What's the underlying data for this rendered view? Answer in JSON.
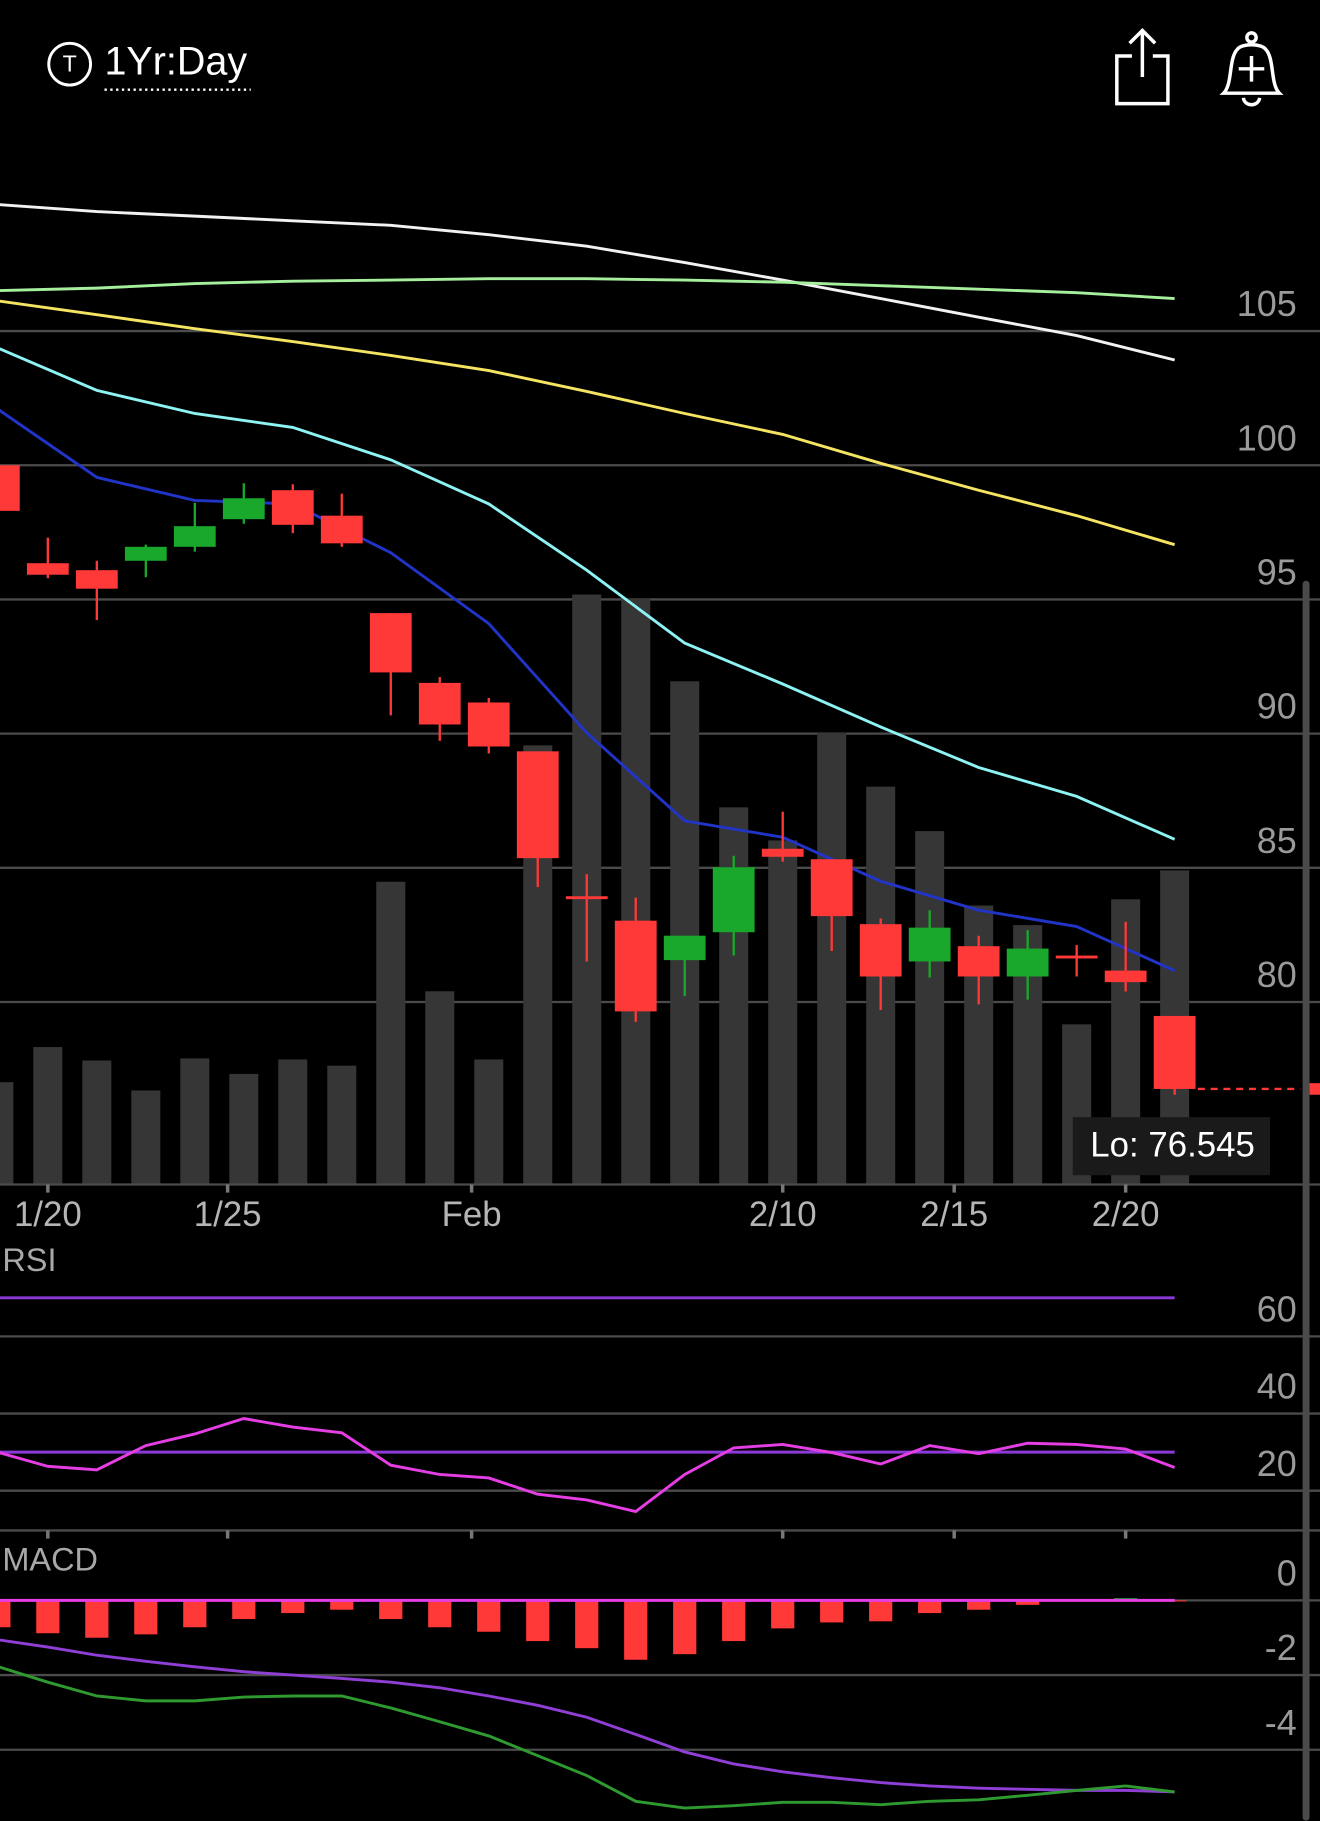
{
  "header": {
    "icon_label": "T",
    "title": "1Yr:Day"
  },
  "chart_data": [
    {
      "type": "candlestick",
      "xlim": [
        0,
        27
      ],
      "ylim": [
        73.2,
        111.7
      ],
      "yticks": [
        80,
        85,
        90,
        95,
        100,
        105
      ],
      "xticks": [
        {
          "value": 1,
          "label": "1/20"
        },
        {
          "value": 4.67,
          "label": "1/25"
        },
        {
          "value": 9.65,
          "label": "Feb"
        },
        {
          "value": 16,
          "label": "2/10"
        },
        {
          "value": 19.5,
          "label": "2/15"
        },
        {
          "value": 23,
          "label": "2/20"
        }
      ],
      "grid": true,
      "up_color": "#19a82b",
      "down_color": "#ff3838",
      "open": [
        100.0,
        96.35,
        96.09,
        96.44,
        96.96,
        97.99,
        99.07,
        98.12,
        94.49,
        91.89,
        91.16,
        89.34,
        83.94,
        83.03,
        81.56,
        82.6,
        85.71,
        85.32,
        82.9,
        81.51,
        82.08,
        80.95,
        81.73,
        81.17,
        79.48
      ],
      "high": [
        100.2,
        97.3,
        96.44,
        97.04,
        98.6,
        99.33,
        99.29,
        98.94,
        94.49,
        92.11,
        91.33,
        89.34,
        84.76,
        83.89,
        82.47,
        85.45,
        87.09,
        85.32,
        83.11,
        83.42,
        82.47,
        82.68,
        82.12,
        82.99,
        79.48
      ],
      "low": [
        98.2,
        95.79,
        94.23,
        95.83,
        96.78,
        97.82,
        97.47,
        96.96,
        90.68,
        89.73,
        89.26,
        84.28,
        81.51,
        79.26,
        80.22,
        81.73,
        85.23,
        81.9,
        79.7,
        80.91,
        79.91,
        80.09,
        80.95,
        80.39,
        76.545
      ],
      "close": [
        98.3,
        95.92,
        95.4,
        96.96,
        97.73,
        98.77,
        97.78,
        97.09,
        92.28,
        90.34,
        89.52,
        85.36,
        83.9,
        79.65,
        82.47,
        85.02,
        85.41,
        83.2,
        80.95,
        82.77,
        80.95,
        81.99,
        81.64,
        80.74,
        76.76
      ],
      "volume": [
        9.9,
        13.3,
        12.0,
        9.1,
        12.2,
        10.7,
        12.1,
        11.5,
        29.3,
        18.7,
        12.1,
        42.5,
        57.1,
        56.7,
        48.7,
        36.5,
        33.3,
        43.7,
        38.5,
        34.2,
        27.0,
        25.1,
        15.5,
        27.6,
        30.4
      ],
      "volume_lim": [
        0,
        100
      ],
      "volume_color": "#363636",
      "ma_x": [
        0,
        2,
        4,
        6,
        8,
        10,
        12,
        14,
        16,
        18,
        20,
        22,
        24
      ],
      "moving_averages": [
        {
          "color": "#f2f2f2",
          "values": [
            109.71,
            109.45,
            109.28,
            109.11,
            108.94,
            108.59,
            108.16,
            107.55,
            106.9,
            106.21,
            105.52,
            104.83,
            103.92
          ]
        },
        {
          "color": "#a6ef9c",
          "values": [
            106.51,
            106.6,
            106.77,
            106.86,
            106.9,
            106.95,
            106.95,
            106.9,
            106.82,
            106.69,
            106.56,
            106.43,
            106.21
          ]
        },
        {
          "color": "#f4e462",
          "values": [
            106.12,
            105.61,
            105.09,
            104.61,
            104.09,
            103.53,
            102.75,
            101.93,
            101.15,
            100.07,
            99.07,
            98.12,
            97.04
          ]
        },
        {
          "color": "#8ef3f3",
          "values": [
            104.35,
            102.79,
            101.93,
            101.41,
            100.2,
            98.56,
            96.09,
            93.37,
            91.85,
            90.25,
            88.74,
            87.66,
            86.06
          ]
        },
        {
          "color": "#2234c8",
          "values": [
            102.06,
            99.55,
            98.69,
            98.56,
            96.74,
            94.1,
            90.03,
            86.75,
            86.14,
            84.5,
            83.42,
            82.81,
            81.17
          ]
        }
      ],
      "annotation": "Lo: 76.545"
    },
    {
      "type": "line",
      "title": "RSI",
      "ylim": [
        10,
        75
      ],
      "yticks": [
        20,
        40,
        60
      ],
      "grid": true,
      "levels": [
        30,
        70
      ],
      "level_color": "#8b3ad8",
      "series": [
        {
          "color": "#e43ee4",
          "values": [
            29.9,
            26.3,
            25.4,
            31.7,
            34.7,
            38.7,
            36.5,
            35.0,
            26.6,
            24.2,
            23.3,
            19.1,
            17.6,
            14.6,
            24.2,
            31.1,
            32.0,
            29.9,
            26.9,
            31.7,
            29.6,
            32.3,
            32.0,
            30.8,
            26.0
          ]
        }
      ]
    },
    {
      "type": "macd",
      "title": "MACD",
      "ylim": [
        -5.9,
        1.5
      ],
      "yticks": [
        0,
        -2,
        -4
      ],
      "grid": true,
      "zero_color": "#e43ee4",
      "histogram": {
        "color": "#ff3838",
        "up_color": "#19a82b",
        "values": [
          -0.72,
          -0.88,
          -1.0,
          -0.91,
          -0.72,
          -0.5,
          -0.34,
          -0.25,
          -0.5,
          -0.72,
          -0.84,
          -1.09,
          -1.28,
          -1.59,
          -1.44,
          -1.09,
          -0.75,
          -0.59,
          -0.56,
          -0.34,
          -0.25,
          -0.12,
          -0.03,
          0.06,
          -0.03
        ]
      },
      "series": [
        {
          "color": "#8f3fd6",
          "values": [
            -1.06,
            -1.25,
            -1.47,
            -1.63,
            -1.78,
            -1.91,
            -2.0,
            -2.09,
            -2.19,
            -2.34,
            -2.56,
            -2.81,
            -3.13,
            -3.59,
            -4.06,
            -4.38,
            -4.59,
            -4.75,
            -4.88,
            -4.97,
            -5.03,
            -5.06,
            -5.09,
            -5.09,
            -5.13
          ]
        },
        {
          "color": "#2f9a2f",
          "values": [
            -1.78,
            -2.19,
            -2.56,
            -2.69,
            -2.69,
            -2.59,
            -2.56,
            -2.56,
            -2.88,
            -3.25,
            -3.63,
            -4.16,
            -4.69,
            -5.38,
            -5.56,
            -5.5,
            -5.41,
            -5.41,
            -5.47,
            -5.38,
            -5.34,
            -5.22,
            -5.09,
            -4.97,
            -5.13
          ]
        }
      ]
    }
  ]
}
